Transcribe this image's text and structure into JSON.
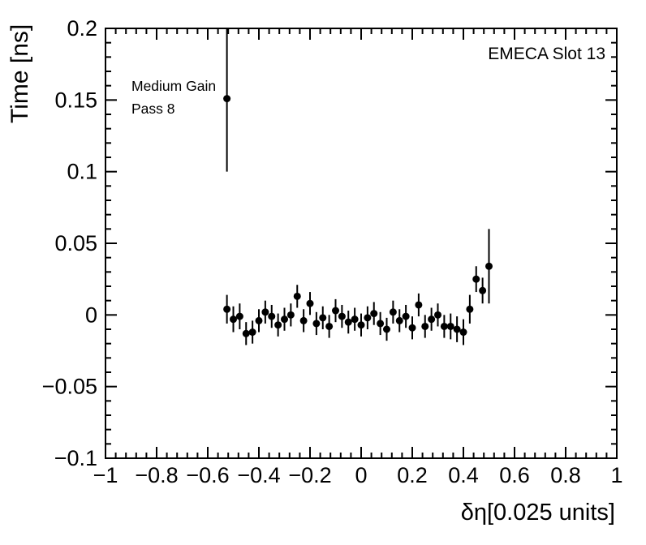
{
  "annotations": {
    "slot": "EMECA Slot 13",
    "gain_line1": "Medium Gain",
    "gain_line2": "Pass 8"
  },
  "chart_data": {
    "type": "scatter",
    "title": "",
    "xlabel": "δη[0.025 units]",
    "ylabel": "Time [ns]",
    "xlim": [
      -1,
      1
    ],
    "ylim": [
      -0.1,
      0.2
    ],
    "grid": false,
    "x_ticks": [
      -1,
      -0.8,
      -0.6,
      -0.4,
      -0.2,
      0,
      0.2,
      0.4,
      0.6,
      0.8,
      1
    ],
    "x_tick_labels": [
      "−1",
      "−0.8",
      "−0.6",
      "−0.4",
      "−0.2",
      "0",
      "0.2",
      "0.4",
      "0.6",
      "0.8",
      "1"
    ],
    "y_ticks": [
      -0.1,
      -0.05,
      0,
      0.05,
      0.1,
      0.15,
      0.2
    ],
    "y_tick_labels": [
      "−0.1",
      "−0.05",
      "0",
      "0.05",
      "0.1",
      "0.15",
      "0.2"
    ],
    "x_minor_step": 0.04,
    "y_minor_step": 0.01,
    "marker": "filled-circle",
    "marker_color": "#000000",
    "points": [
      {
        "x": -0.525,
        "y": 0.151,
        "ey": 0.051
      },
      {
        "x": -0.525,
        "y": 0.004,
        "ey": 0.01
      },
      {
        "x": -0.5,
        "y": -0.003,
        "ey": 0.009
      },
      {
        "x": -0.475,
        "y": -0.001,
        "ey": 0.009
      },
      {
        "x": -0.45,
        "y": -0.013,
        "ey": 0.008
      },
      {
        "x": -0.425,
        "y": -0.012,
        "ey": 0.008
      },
      {
        "x": -0.4,
        "y": -0.004,
        "ey": 0.008
      },
      {
        "x": -0.375,
        "y": 0.002,
        "ey": 0.008
      },
      {
        "x": -0.35,
        "y": -0.001,
        "ey": 0.008
      },
      {
        "x": -0.325,
        "y": -0.007,
        "ey": 0.008
      },
      {
        "x": -0.3,
        "y": -0.003,
        "ey": 0.008
      },
      {
        "x": -0.275,
        "y": 0.0,
        "ey": 0.008
      },
      {
        "x": -0.25,
        "y": 0.013,
        "ey": 0.008
      },
      {
        "x": -0.225,
        "y": -0.004,
        "ey": 0.008
      },
      {
        "x": -0.2,
        "y": 0.008,
        "ey": 0.008
      },
      {
        "x": -0.175,
        "y": -0.006,
        "ey": 0.008
      },
      {
        "x": -0.15,
        "y": -0.002,
        "ey": 0.008
      },
      {
        "x": -0.125,
        "y": -0.008,
        "ey": 0.008
      },
      {
        "x": -0.1,
        "y": 0.003,
        "ey": 0.008
      },
      {
        "x": -0.075,
        "y": -0.001,
        "ey": 0.008
      },
      {
        "x": -0.05,
        "y": -0.005,
        "ey": 0.008
      },
      {
        "x": -0.025,
        "y": -0.003,
        "ey": 0.008
      },
      {
        "x": 0.0,
        "y": -0.007,
        "ey": 0.008
      },
      {
        "x": 0.025,
        "y": -0.002,
        "ey": 0.008
      },
      {
        "x": 0.05,
        "y": 0.001,
        "ey": 0.008
      },
      {
        "x": 0.075,
        "y": -0.006,
        "ey": 0.008
      },
      {
        "x": 0.1,
        "y": -0.01,
        "ey": 0.008
      },
      {
        "x": 0.125,
        "y": 0.002,
        "ey": 0.008
      },
      {
        "x": 0.15,
        "y": -0.004,
        "ey": 0.008
      },
      {
        "x": 0.175,
        "y": -0.001,
        "ey": 0.008
      },
      {
        "x": 0.2,
        "y": -0.009,
        "ey": 0.008
      },
      {
        "x": 0.225,
        "y": 0.007,
        "ey": 0.008
      },
      {
        "x": 0.25,
        "y": -0.008,
        "ey": 0.008
      },
      {
        "x": 0.275,
        "y": -0.003,
        "ey": 0.008
      },
      {
        "x": 0.3,
        "y": 0.0,
        "ey": 0.008
      },
      {
        "x": 0.325,
        "y": -0.008,
        "ey": 0.008
      },
      {
        "x": 0.35,
        "y": -0.008,
        "ey": 0.009
      },
      {
        "x": 0.375,
        "y": -0.01,
        "ey": 0.009
      },
      {
        "x": 0.4,
        "y": -0.012,
        "ey": 0.009
      },
      {
        "x": 0.425,
        "y": 0.004,
        "ey": 0.01
      },
      {
        "x": 0.45,
        "y": 0.025,
        "ey": 0.009
      },
      {
        "x": 0.475,
        "y": 0.017,
        "ey": 0.009
      },
      {
        "x": 0.5,
        "y": 0.034,
        "ey": 0.026
      }
    ]
  }
}
